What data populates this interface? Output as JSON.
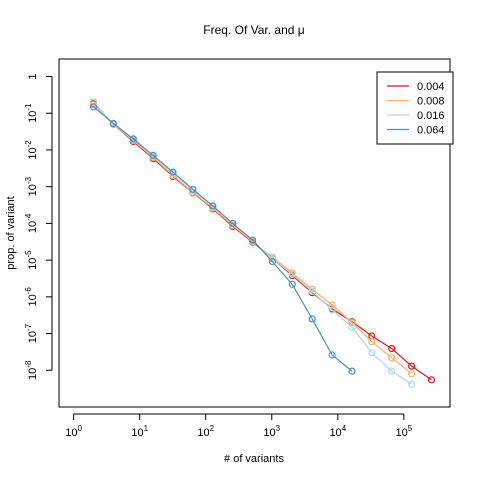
{
  "chart_data": {
    "type": "line",
    "title": "Freq. Of Var. and μ",
    "xlabel": "# of variants",
    "ylabel": "prop. of variant",
    "x_scale": "log10",
    "y_scale": "log10",
    "xlim": [
      0.6,
      500000
    ],
    "ylim": [
      1e-09,
      3
    ],
    "x_ticks": [
      {
        "value": 1,
        "base": "10",
        "exp": "0"
      },
      {
        "value": 10,
        "base": "10",
        "exp": "1"
      },
      {
        "value": 100,
        "base": "10",
        "exp": "2"
      },
      {
        "value": 1000,
        "base": "10",
        "exp": "3"
      },
      {
        "value": 10000,
        "base": "10",
        "exp": "4"
      },
      {
        "value": 100000,
        "base": "10",
        "exp": "5"
      }
    ],
    "y_ticks": [
      {
        "value": 1,
        "base": "1",
        "exp": ""
      },
      {
        "value": 0.1,
        "base": "10",
        "exp": "-1"
      },
      {
        "value": 0.01,
        "base": "10",
        "exp": "-2"
      },
      {
        "value": 0.001,
        "base": "10",
        "exp": "-3"
      },
      {
        "value": 0.0001,
        "base": "10",
        "exp": "-4"
      },
      {
        "value": 1e-05,
        "base": "10",
        "exp": "-5"
      },
      {
        "value": 1e-06,
        "base": "10",
        "exp": "-6"
      },
      {
        "value": 1e-07,
        "base": "10",
        "exp": "-7"
      },
      {
        "value": 1e-08,
        "base": "10",
        "exp": "-8"
      }
    ],
    "legend_position": "top-right",
    "grid": false,
    "series": [
      {
        "name": "0.004",
        "color": "#d7191c",
        "x": [
          2,
          4,
          8,
          16,
          32,
          64,
          128,
          256,
          512,
          1024,
          2048,
          4096,
          8192,
          16384,
          32768,
          65536,
          131072,
          262144
        ],
        "y": [
          0.18,
          0.05,
          0.017,
          0.0058,
          0.0019,
          0.00068,
          0.00025,
          8.3e-05,
          3.1e-05,
          1.1e-05,
          3.8e-06,
          1.3e-06,
          4.7e-07,
          2.1e-07,
          8.6e-08,
          3.9e-08,
          1.3e-08,
          5.5e-09
        ]
      },
      {
        "name": "0.008",
        "color": "#fdae61",
        "x": [
          2,
          4,
          8,
          16,
          32,
          64,
          128,
          256,
          512,
          1024,
          2048,
          4096,
          8192,
          16384,
          32768,
          65536,
          131072
        ],
        "y": [
          0.2,
          0.05,
          0.018,
          0.0062,
          0.002,
          0.0007,
          0.00026,
          8.8e-05,
          3.2e-05,
          1.2e-05,
          4.5e-06,
          1.6e-06,
          6e-07,
          2e-07,
          6e-08,
          2.2e-08,
          8e-09
        ]
      },
      {
        "name": "0.016",
        "color": "#abd9e9",
        "x": [
          2,
          4,
          8,
          16,
          32,
          64,
          128,
          256,
          512,
          1024,
          2048,
          4096,
          8192,
          16384,
          32768,
          65536,
          131072
        ],
        "y": [
          0.17,
          0.053,
          0.019,
          0.0068,
          0.0023,
          0.0008,
          0.00029,
          9.8e-05,
          3.4e-05,
          1.1e-05,
          4.1e-06,
          1.4e-06,
          4.4e-07,
          1.5e-07,
          3e-08,
          9.5e-09,
          4.2e-09
        ]
      },
      {
        "name": "0.064",
        "color": "#4a90c4",
        "x": [
          2,
          4,
          8,
          16,
          32,
          64,
          128,
          256,
          512,
          1024,
          2048,
          4096,
          8192,
          16384
        ],
        "y": [
          0.15,
          0.053,
          0.02,
          0.0071,
          0.0025,
          0.00085,
          0.0003,
          0.0001,
          3.5e-05,
          9.1e-06,
          2.2e-06,
          2.5e-07,
          2.6e-08,
          9.5e-09
        ]
      }
    ]
  }
}
